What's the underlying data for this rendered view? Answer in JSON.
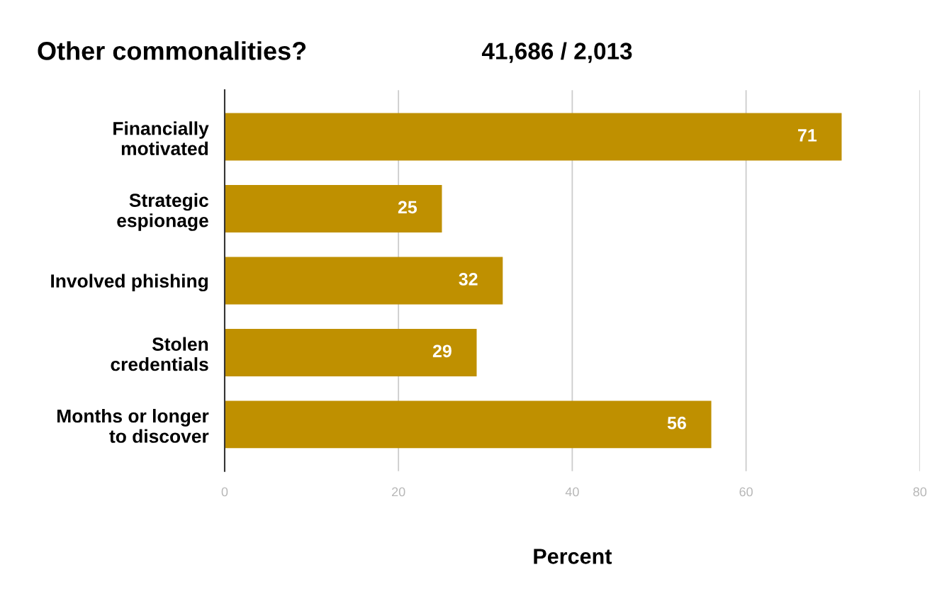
{
  "chart_data": {
    "type": "bar",
    "orientation": "horizontal",
    "title": "Other commonalities?",
    "subtitle": "41,686 / 2,013",
    "xlabel": "Percent",
    "categories": [
      "Financially\nmotivated",
      "Strategic\nespionage",
      "Involved phishing",
      "Stolen\ncredentials",
      "Months or longer\nto discover"
    ],
    "values": [
      71,
      25,
      32,
      29,
      56
    ],
    "color": "#bf9000",
    "xlim": [
      0,
      80
    ],
    "xticks": [
      0,
      20,
      40,
      60,
      80
    ],
    "grid": "x",
    "data_labels": true
  }
}
